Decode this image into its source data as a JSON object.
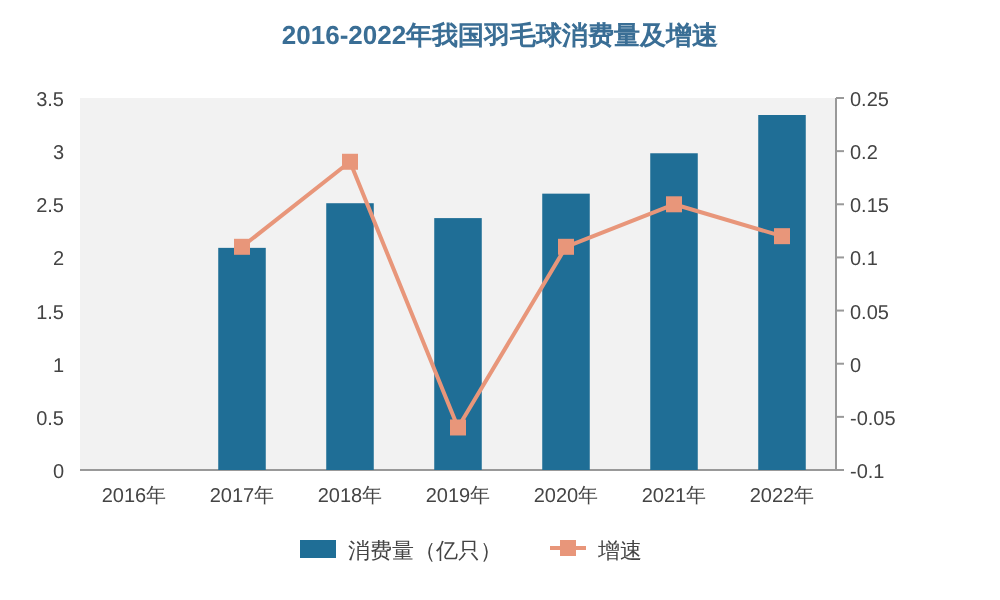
{
  "chart_data": {
    "type": "bar",
    "title": "2016-2022年我国羽毛球消费量及增速",
    "categories": [
      "2016年",
      "2017年",
      "2018年",
      "2019年",
      "2020年",
      "2021年",
      "2022年"
    ],
    "series": [
      {
        "name": "消费量（亿只）",
        "color": "#1f6e96",
        "values": [
          null,
          2.09,
          2.51,
          2.37,
          2.6,
          2.98,
          3.34
        ]
      },
      {
        "name": "增速",
        "type": "line",
        "axis": "y2",
        "color": "#e8967a",
        "marker": "square",
        "values": [
          null,
          0.11,
          0.19,
          -0.06,
          0.11,
          0.15,
          0.12
        ]
      }
    ],
    "ylim": [
      0,
      3.5
    ],
    "yticks": [
      0,
      0.5,
      1,
      1.5,
      2,
      2.5,
      3,
      3.5
    ],
    "y2lim": [
      -0.1,
      0.25
    ],
    "y2ticks": [
      -0.1,
      -0.05,
      0,
      0.05,
      0.1,
      0.15,
      0.2,
      0.25
    ],
    "grid": false,
    "legend": "bottom"
  }
}
